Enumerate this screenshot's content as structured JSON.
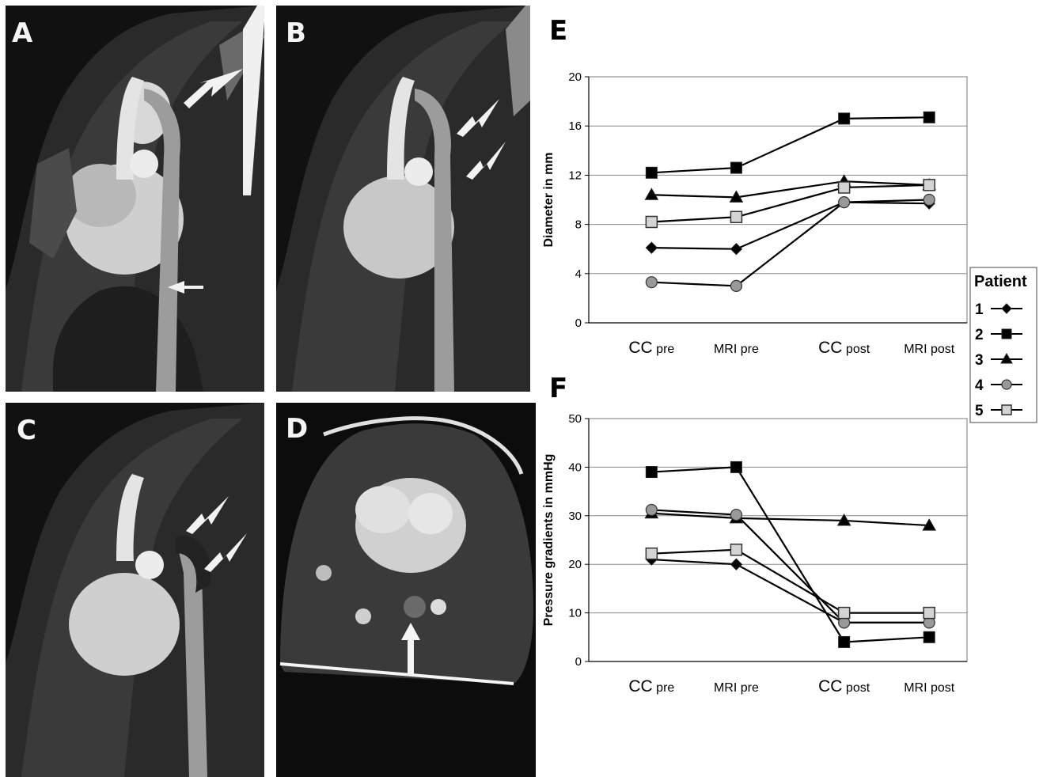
{
  "panels": {
    "A": {
      "letter": "A"
    },
    "B": {
      "letter": "B"
    },
    "C": {
      "letter": "C"
    },
    "D": {
      "letter": "D"
    },
    "E": {
      "letter": "E"
    },
    "F": {
      "letter": "F"
    }
  },
  "colors": {
    "series": [
      "#000000",
      "#000000",
      "#000000",
      "#999999",
      "#d4d4d4"
    ],
    "grid": "#888888"
  },
  "legend": {
    "title": "Patient",
    "entries": [
      "1",
      "2",
      "3",
      "4",
      "5"
    ],
    "markers": [
      "diamond",
      "square",
      "triangle",
      "circle",
      "square-open"
    ]
  },
  "chart_data": [
    {
      "type": "line",
      "panel": "E",
      "ylabel": "Diameter in mm",
      "categories": [
        {
          "big": "CC",
          "small": " pre"
        },
        {
          "big": "",
          "small": "MRI pre"
        },
        {
          "big": "CC",
          "small": " post"
        },
        {
          "big": "",
          "small": "MRI post"
        }
      ],
      "ylim": [
        0,
        20
      ],
      "yticks": [
        0,
        4,
        8,
        12,
        16,
        20
      ],
      "grid": true,
      "series": [
        {
          "name": "1",
          "values": [
            6.1,
            6.0,
            9.8,
            9.7
          ]
        },
        {
          "name": "2",
          "values": [
            12.2,
            12.6,
            16.6,
            16.7
          ]
        },
        {
          "name": "3",
          "values": [
            10.4,
            10.2,
            11.5,
            11.2
          ]
        },
        {
          "name": "4",
          "values": [
            3.3,
            3.0,
            9.8,
            10.0
          ]
        },
        {
          "name": "5",
          "values": [
            8.2,
            8.6,
            11.0,
            11.2
          ]
        }
      ]
    },
    {
      "type": "line",
      "panel": "F",
      "ylabel": "Pressure gradients in mmHg",
      "categories": [
        {
          "big": "CC",
          "small": " pre"
        },
        {
          "big": "",
          "small": "MRI pre"
        },
        {
          "big": "CC",
          "small": " post"
        },
        {
          "big": "",
          "small": "MRI post"
        }
      ],
      "ylim": [
        0,
        50
      ],
      "yticks": [
        0,
        10,
        20,
        30,
        40,
        50
      ],
      "grid": true,
      "series": [
        {
          "name": "1",
          "values": [
            21,
            20,
            8,
            8
          ]
        },
        {
          "name": "2",
          "values": [
            39,
            40,
            4,
            5
          ]
        },
        {
          "name": "3",
          "values": [
            30.5,
            29.5,
            29,
            28
          ]
        },
        {
          "name": "4",
          "values": [
            31.2,
            30.2,
            8,
            8
          ]
        },
        {
          "name": "5",
          "values": [
            22.2,
            23,
            10,
            10
          ]
        }
      ]
    }
  ]
}
